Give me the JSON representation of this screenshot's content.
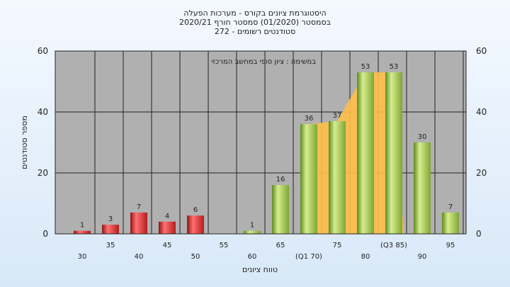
{
  "chart_data": {
    "type": "bar",
    "title_lines": [
      "היסטוגרמת ציונים בקורס - מערכות הפעלה",
      "בסמסטר  (01/2020)  סמסטר חורף  2020/21",
      "סטודנטים רשומים - 272"
    ],
    "annotation": "במשימה : ציון סופי במחשב המרכזי",
    "ylabel": "מספר סטודנטים",
    "xlabel": "טווח ציונים",
    "ylim": [
      0,
      60
    ],
    "yticks": [
      0,
      20,
      40,
      60
    ],
    "grid": true,
    "categories": [
      "30",
      "35",
      "40",
      "45",
      "50",
      "55",
      "60",
      "65",
      "(Q1 70)",
      "75",
      "80",
      "(Q3 85)",
      "90",
      "95"
    ],
    "values": [
      1,
      3,
      7,
      4,
      6,
      0,
      1,
      16,
      36,
      37,
      53,
      53,
      30,
      7
    ],
    "value_labels": [
      "1",
      "3",
      "7",
      "4",
      "6",
      "",
      "1",
      "16",
      "36",
      "37",
      "53",
      "53",
      "30",
      "7"
    ],
    "fail_threshold_index": 6,
    "interquartile_range": [
      "(Q1 70)",
      "(Q3 85)"
    ],
    "colors": {
      "fail": "#d42a2a",
      "pass": "#9cc24a",
      "iqr_band": "#ffc04a",
      "plot_bg": "#b0b0b0",
      "grid": "#222222"
    }
  }
}
